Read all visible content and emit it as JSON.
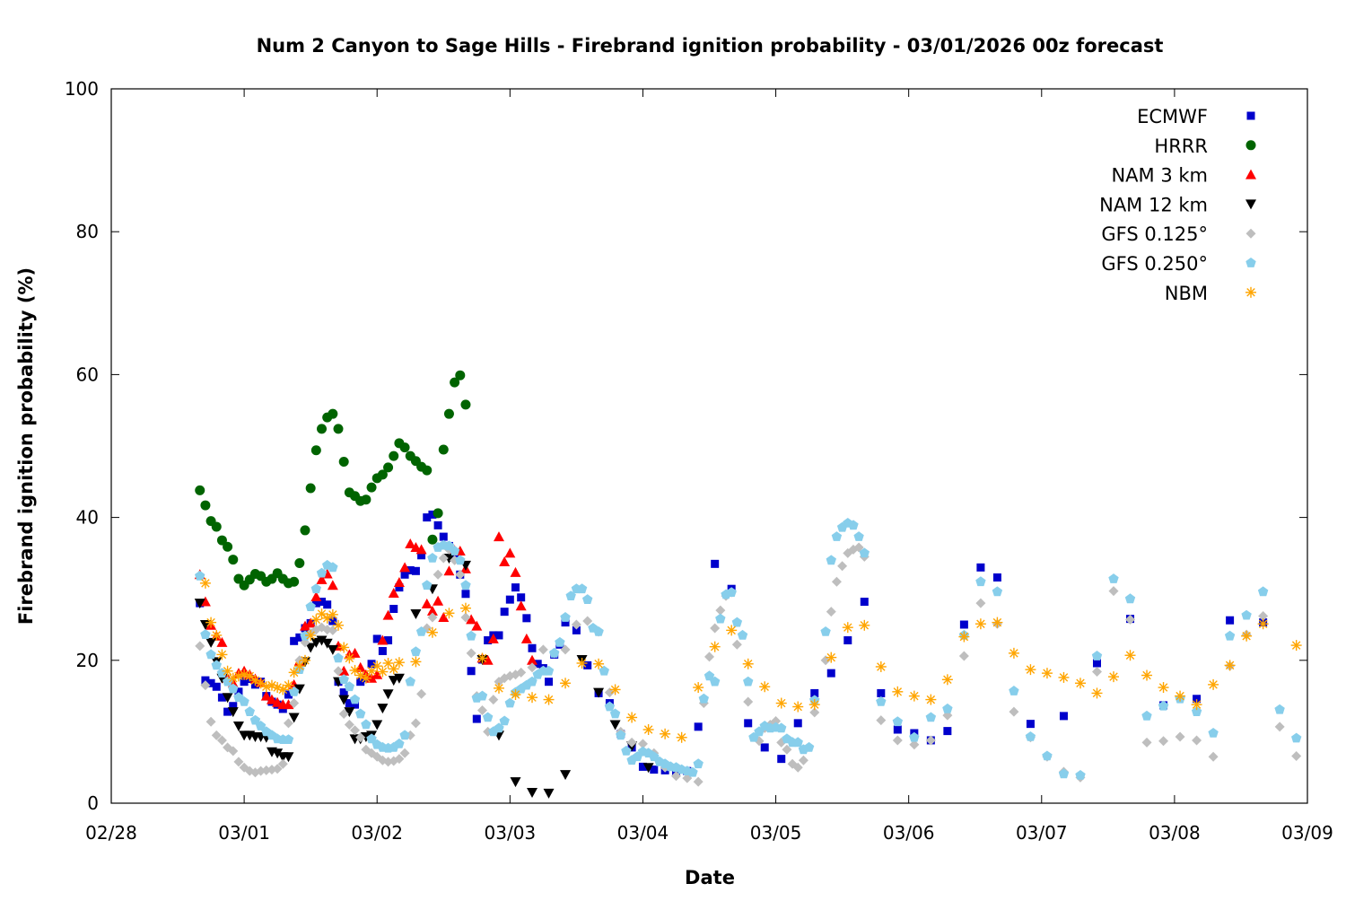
{
  "chart_data": {
    "type": "scatter",
    "title": "Num 2 Canyon to Sage Hills - Firebrand ignition probability - 03/01/2026 00z forecast",
    "xlabel": "Date",
    "ylabel": "Firebrand ignition probability (%)",
    "x_units": "hours since 02/28 00:00",
    "xlim": [
      0,
      216
    ],
    "ylim": [
      0,
      100
    ],
    "x_ticks": [
      {
        "hour": 0,
        "label": "02/28"
      },
      {
        "hour": 24,
        "label": "03/01"
      },
      {
        "hour": 48,
        "label": "03/02"
      },
      {
        "hour": 72,
        "label": "03/03"
      },
      {
        "hour": 96,
        "label": "03/04"
      },
      {
        "hour": 120,
        "label": "03/05"
      },
      {
        "hour": 144,
        "label": "03/06"
      },
      {
        "hour": 168,
        "label": "03/07"
      },
      {
        "hour": 192,
        "label": "03/08"
      },
      {
        "hour": 216,
        "label": "03/09"
      }
    ],
    "y_ticks": [
      0,
      20,
      40,
      60,
      80,
      100
    ],
    "grid": false,
    "legend_position": "top-right",
    "series": [
      {
        "name": "ECMWF",
        "marker": "square",
        "color": "#0000cc",
        "segments": [
          {
            "start": 16,
            "step": 1,
            "values": [
              28,
              17.2,
              16.8,
              16.3,
              14.8,
              12.8,
              13.6,
              15.6,
              17,
              17.4,
              16.6,
              17,
              15,
              14.2,
              13.8,
              13.2,
              15.2,
              22.7,
              23.2,
              24.5,
              25.2,
              28,
              28.2,
              27.8,
              25.5,
              17,
              15.5,
              14,
              13.8,
              17,
              17.5,
              19.5,
              23,
              21.3,
              22.8,
              27.2,
              30.2,
              32,
              32.6,
              32.5,
              34.7,
              40,
              40.4,
              38.9,
              37.3,
              36,
              34.4,
              32,
              29.3,
              18.5,
              11.8,
              20.1,
              22.8,
              23.5,
              23.5,
              26.8,
              28.5,
              30.2,
              28.8,
              25.9,
              21.7,
              19.5,
              18.9,
              17,
              20.8,
              22.2,
              25.3
            ]
          },
          {
            "start": 84,
            "step": 2,
            "values": [
              24.2,
              19.3,
              15.4,
              14,
              9.7,
              7.8,
              5.1,
              4.7,
              4.6,
              4.4,
              4.5,
              10.7
            ]
          },
          {
            "start": 109,
            "step": 3,
            "values": [
              33.5,
              30,
              11.2,
              7.8,
              6.2,
              11.2,
              15.4,
              18.2,
              22.8,
              28.2,
              15.4,
              10.3,
              9.8,
              8.8,
              10.1,
              25,
              33,
              31.6
            ]
          },
          {
            "start": 166,
            "step": 6,
            "values": [
              11.1,
              12.2,
              19.6,
              25.8,
              13.7,
              14.6,
              25.6,
              25.3
            ]
          }
        ]
      },
      {
        "name": "HRRR",
        "marker": "circle",
        "color": "#006400",
        "segments": [
          {
            "start": 16,
            "step": 1,
            "values": [
              43.8,
              41.7,
              39.5,
              38.7,
              36.8,
              35.9,
              34.1,
              31.4,
              30.5,
              31.3,
              32.1,
              31.8,
              31,
              31.4,
              32.2,
              31.4,
              30.8,
              31,
              33.6,
              38.2,
              44.1,
              49.4,
              52.4,
              54,
              54.5,
              52.4,
              47.8,
              43.5,
              43,
              42.3,
              42.5,
              44.2,
              45.5,
              46,
              47,
              48.6,
              50.4,
              49.8,
              48.6,
              47.9,
              47.1,
              46.6,
              36.9,
              40.6,
              49.5,
              54.5,
              58.9,
              59.9,
              55.8
            ]
          }
        ]
      },
      {
        "name": "NAM 3 km",
        "marker": "triangle-up",
        "color": "#ff0000",
        "segments": [
          {
            "start": 16,
            "step": 1,
            "values": [
              32,
              28.2,
              24.9,
              23.4,
              22.5,
              17.5,
              16.8,
              18.2,
              18.5,
              18,
              17.4,
              16.9,
              15,
              14.5,
              14.1,
              13.8,
              13.8,
              16.6,
              19.9,
              24.8,
              25.2,
              28.9,
              31.3,
              32.1,
              30.5,
              22,
              18.5,
              20.8,
              21,
              19,
              18,
              17.5,
              18,
              22.8,
              26.3,
              29.4,
              30.9,
              33,
              36.3,
              35.8,
              35.5,
              27.9,
              26.9,
              28.3,
              26,
              32.5,
              35.4,
              35.3,
              32.8,
              25.7,
              24.8,
              20.3,
              20,
              23,
              37.3,
              33.8,
              35,
              32.3,
              27.6,
              23,
              20
            ]
          }
        ]
      },
      {
        "name": "NAM 12 km",
        "marker": "triangle-down",
        "color": "#000000",
        "segments": [
          {
            "start": 16,
            "step": 1,
            "values": [
              28,
              25,
              22.5,
              19.8,
              17.5,
              14.8,
              12.8,
              10.8,
              9.5,
              9.5,
              9.3,
              9.3,
              9.2,
              7.2,
              7,
              6.5,
              6.5,
              12,
              16,
              19.8,
              21.8,
              22.5,
              22.8,
              22.4,
              21.5,
              17,
              14.5,
              12.8,
              9,
              9,
              9.3,
              9.5,
              11,
              13.3,
              15.3,
              17.2,
              17.5
            ]
          },
          {
            "start": 55,
            "step": 3,
            "values": [
              26.5,
              30,
              34.3,
              33.3,
              20.1,
              9.5,
              3,
              1.5,
              1.4,
              4,
              20.1,
              15.5,
              11,
              8,
              5
            ]
          }
        ]
      },
      {
        "name": "GFS 0.125°",
        "marker": "diamond",
        "color": "#bebebe",
        "segments": [
          {
            "start": 16,
            "step": 1,
            "values": [
              22,
              16.5,
              11.4,
              9.5,
              8.8,
              7.8,
              7.3,
              5.8,
              5,
              4.5,
              4.3,
              4.5,
              4.6,
              4.7,
              4.8,
              5.5,
              11.2,
              14,
              20,
              22.5,
              23.8,
              24.3,
              24.6,
              24.3,
              24.2,
              18.5,
              12.5,
              11,
              10.2,
              9.2,
              7.5,
              7,
              6.5,
              6,
              5.8,
              5.9,
              6.2,
              7,
              9.5,
              11.2,
              15.3,
              24.5,
              26,
              32,
              34.3,
              35.5,
              34,
              32,
              26,
              21,
              15,
              13,
              10,
              14.5,
              17,
              17.5,
              17.8,
              18,
              18.3
            ]
          },
          {
            "start": 76,
            "step": 2,
            "values": [
              19,
              21.5,
              21,
              21.5,
              25,
              25.5,
              24,
              15.5,
              10,
              8.5,
              8.3,
              7,
              5,
              3.8,
              3.5,
              3
            ]
          },
          {
            "points": [
              [
                107,
                14
              ],
              [
                108,
                20.5
              ],
              [
                109,
                24.5
              ],
              [
                110,
                27
              ],
              [
                111,
                29
              ],
              [
                112,
                29.5
              ],
              [
                113,
                22.2
              ],
              [
                115,
                14.2
              ],
              [
                117,
                8.7
              ],
              [
                118,
                10.5
              ],
              [
                119,
                11
              ],
              [
                120,
                11.5
              ],
              [
                121,
                8.5
              ],
              [
                122,
                7.5
              ],
              [
                123,
                5.5
              ],
              [
                124,
                5
              ],
              [
                125,
                6
              ],
              [
                127,
                12.7
              ],
              [
                129,
                20
              ],
              [
                130,
                26.8
              ],
              [
                131,
                31
              ],
              [
                132,
                33.2
              ],
              [
                133,
                35
              ],
              [
                134,
                35.5
              ],
              [
                135,
                35.8
              ],
              [
                136,
                34.5
              ]
            ]
          },
          {
            "start": 139,
            "step": 3,
            "values": [
              11.6,
              8.8,
              8.2,
              8.8,
              12.3,
              20.6,
              28,
              25.1,
              12.8,
              9.2,
              6.5,
              4.4,
              3.6,
              18.4,
              29.7,
              25.7,
              8.5,
              8.7,
              9.3,
              8.8,
              6.5,
              19.2,
              23.6,
              26.2,
              10.7,
              6.6
            ]
          }
        ]
      },
      {
        "name": "GFS 0.250°",
        "marker": "pentagon",
        "color": "#87ceeb",
        "segments": [
          {
            "start": 16,
            "step": 1,
            "values": [
              31.8,
              23.6,
              20.8,
              19.3,
              18.2,
              17,
              16,
              14.8,
              14.2,
              12.8,
              11.6,
              10.8,
              10,
              9.5,
              9,
              8.9,
              8.9,
              15.6,
              18.7,
              23.4,
              27.5,
              30,
              32.2,
              33.3,
              33,
              20.3,
              17.3,
              16.3,
              14.5,
              12.5,
              11,
              9,
              8.2,
              7.8,
              7.7,
              7.8,
              8.3,
              9.5,
              17,
              21.2,
              24,
              30.5,
              34.3,
              35.8,
              36.1,
              36,
              35.3,
              34,
              30.5,
              23.4,
              14.7,
              15,
              12,
              10,
              10.5,
              11.5,
              14,
              15.5,
              16,
              16.5,
              17,
              18,
              18.5,
              18.5,
              21,
              22.5,
              26,
              29,
              30,
              30,
              28.5,
              24.5,
              24,
              18.5,
              13.5,
              12.5,
              9.5,
              7.3,
              6,
              6.5,
              7.2,
              7,
              6.5,
              5.8,
              5.5,
              5.1,
              5,
              4.7,
              4.5,
              4.3,
              5.5
            ]
          },
          {
            "points": [
              [
                107,
                14.6
              ],
              [
                108,
                17.8
              ],
              [
                109,
                17
              ],
              [
                110,
                25.8
              ],
              [
                111,
                29.2
              ],
              [
                112,
                29.5
              ],
              [
                113,
                25.3
              ],
              [
                114,
                23.5
              ],
              [
                115,
                17
              ],
              [
                116,
                9.2
              ],
              [
                117,
                10
              ],
              [
                118,
                10.8
              ],
              [
                119,
                10.5
              ],
              [
                120,
                10.6
              ],
              [
                121,
                10.5
              ],
              [
                122,
                9
              ],
              [
                123,
                8.5
              ],
              [
                124,
                8.5
              ],
              [
                125,
                7.5
              ],
              [
                126,
                7.8
              ],
              [
                127,
                14.4
              ],
              [
                129,
                24
              ],
              [
                130,
                34
              ],
              [
                131,
                37.3
              ],
              [
                132,
                38.6
              ],
              [
                133,
                39.2
              ],
              [
                134,
                38.9
              ],
              [
                135,
                37.3
              ],
              [
                136,
                35
              ]
            ]
          },
          {
            "start": 139,
            "step": 3,
            "values": [
              14.2,
              11.4,
              9.2,
              12,
              13.2,
              23.5,
              31,
              29.6,
              15.7,
              9.3,
              6.6,
              4.1,
              3.9,
              20.6,
              31.4,
              28.6,
              12.2,
              13.6,
              14.6,
              12.8,
              9.8,
              23.4,
              26.3,
              29.6,
              13.1,
              9.1
            ]
          }
        ]
      },
      {
        "name": "NBM",
        "marker": "asterisk",
        "color": "#ffa500",
        "segments": [
          {
            "start": 17,
            "step": 1,
            "values": [
              30.8,
              25.3,
              23.5,
              20.8,
              18.5,
              17.5,
              17.8,
              18,
              17.8,
              17.2,
              16.8,
              16.3,
              16.5,
              16.2,
              15.9,
              16.5,
              18.3,
              19.2,
              20,
              23.5,
              25.7,
              26.5,
              25.9,
              26.4,
              24.9,
              21.8,
              20.3,
              18.6,
              17.9,
              17.5,
              18.5,
              19.2,
              18.4,
              19.6,
              18.8
            ]
          },
          {
            "start": 52,
            "step": 3,
            "values": [
              19.7,
              19.8,
              23.9,
              26.6,
              27.3,
              20.3,
              16.1,
              15.2,
              14.8,
              14.5,
              16.8,
              19.6,
              19.5,
              15.9,
              12,
              10.3,
              9.7,
              9.2,
              16.2,
              21.9,
              24.2,
              19.5,
              16.3,
              14,
              13.5,
              13.8,
              20.4,
              24.6,
              24.9,
              19.1,
              15.6,
              15,
              14.5,
              17.3,
              23.3,
              25.1,
              25.3,
              21,
              18.7,
              18.2,
              17.6,
              16.8,
              15.4,
              17.7,
              20.7,
              17.9,
              16.2,
              15,
              13.8,
              16.6,
              19.3,
              23.4,
              25.1
            ]
          },
          {
            "points": [
              [
                214,
                22.1
              ]
            ]
          }
        ]
      }
    ]
  }
}
